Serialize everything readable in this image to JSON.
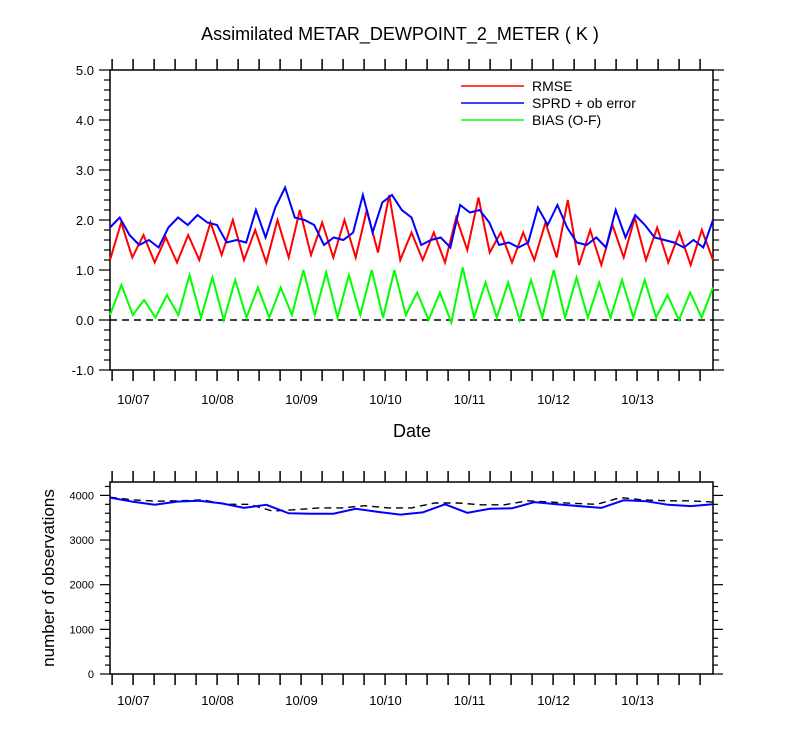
{
  "chart_data": [
    {
      "type": "line",
      "title": "Assimilated METAR_DEWPOINT_2_METER ( K )",
      "xlabel": "Date",
      "ylabel": "",
      "ylim": [
        -1.0,
        5.0
      ],
      "y_ticks": [
        "-1.0",
        "0.0",
        "1.0",
        "2.0",
        "3.0",
        "4.0",
        "5.0"
      ],
      "x_tick_labels": [
        "10/07",
        "10/08",
        "10/09",
        "10/10",
        "10/11",
        "10/12",
        "10/13"
      ],
      "legend_position": "top-right",
      "reference_line": {
        "y": 0,
        "style": "dashed"
      },
      "series": [
        {
          "name": "RMSE",
          "color": "#ff0000",
          "values": [
            1.2,
            1.95,
            1.25,
            1.7,
            1.15,
            1.65,
            1.15,
            1.7,
            1.2,
            1.95,
            1.3,
            2.0,
            1.2,
            1.8,
            1.15,
            2.0,
            1.25,
            2.2,
            1.3,
            1.95,
            1.25,
            2.0,
            1.25,
            2.2,
            1.35,
            2.5,
            1.2,
            1.75,
            1.2,
            1.75,
            1.15,
            2.05,
            1.4,
            2.45,
            1.35,
            1.75,
            1.15,
            1.75,
            1.2,
            1.95,
            1.25,
            2.4,
            1.1,
            1.8,
            1.1,
            1.9,
            1.25,
            2.05,
            1.2,
            1.85,
            1.15,
            1.75,
            1.1,
            1.8,
            1.2
          ],
          "values_by_half_step": true
        },
        {
          "name": "SPRD + ob error",
          "color": "#0000ff",
          "values": [
            1.85,
            2.05,
            1.7,
            1.5,
            1.6,
            1.45,
            1.85,
            2.05,
            1.9,
            2.1,
            1.95,
            1.9,
            1.55,
            1.6,
            1.55,
            2.2,
            1.65,
            2.25,
            2.65,
            2.05,
            2.0,
            1.9,
            1.5,
            1.65,
            1.6,
            1.75,
            2.5,
            1.75,
            2.35,
            2.5,
            2.2,
            2.05,
            1.5,
            1.6,
            1.65,
            1.45,
            2.3,
            2.15,
            2.2,
            1.95,
            1.5,
            1.55,
            1.45,
            1.55,
            2.25,
            1.9,
            2.3,
            1.85,
            1.55,
            1.5,
            1.65,
            1.45,
            2.2,
            1.65,
            2.1,
            1.9,
            1.65,
            1.6,
            1.55,
            1.45,
            1.6,
            1.45,
            2.0
          ],
          "values_by_half_step": false
        },
        {
          "name": "BIAS (O-F)",
          "color": "#00ff00",
          "values": [
            0.1,
            0.7,
            0.1,
            0.4,
            0.05,
            0.5,
            0.1,
            0.9,
            0.05,
            0.85,
            0.0,
            0.8,
            0.05,
            0.65,
            0.05,
            0.65,
            0.1,
            1.0,
            0.1,
            0.95,
            0.05,
            0.9,
            0.1,
            1.0,
            0.05,
            1.0,
            0.1,
            0.55,
            0.0,
            0.55,
            -0.05,
            1.05,
            0.05,
            0.75,
            0.05,
            0.75,
            0.0,
            0.8,
            0.05,
            1.0,
            0.05,
            0.85,
            0.05,
            0.75,
            0.05,
            0.8,
            0.05,
            0.8,
            0.05,
            0.5,
            0.0,
            0.55,
            0.05,
            0.65
          ]
        }
      ]
    },
    {
      "type": "line",
      "title": "",
      "xlabel": "",
      "ylabel": "number of observations",
      "ylim": [
        0,
        4300
      ],
      "y_ticks": [
        "0",
        "1000",
        "2000",
        "3000",
        "4000"
      ],
      "x_tick_labels": [
        "10/07",
        "10/08",
        "10/09",
        "10/10",
        "10/11",
        "10/12",
        "10/13"
      ],
      "series": [
        {
          "color": "#000000",
          "style": "dashed",
          "values": [
            3960,
            3900,
            3870,
            3880,
            3900,
            3800,
            3800,
            3650,
            3680,
            3720,
            3720,
            3770,
            3720,
            3720,
            3830,
            3830,
            3790,
            3790,
            3880,
            3850,
            3820,
            3800,
            3950,
            3900,
            3880,
            3880,
            3850
          ]
        },
        {
          "color": "#0000ff",
          "style": "solid",
          "values": [
            3950,
            3860,
            3790,
            3860,
            3880,
            3820,
            3720,
            3790,
            3600,
            3590,
            3590,
            3700,
            3630,
            3570,
            3620,
            3800,
            3610,
            3700,
            3710,
            3850,
            3800,
            3760,
            3720,
            3890,
            3870,
            3790,
            3760,
            3800
          ]
        }
      ]
    }
  ]
}
